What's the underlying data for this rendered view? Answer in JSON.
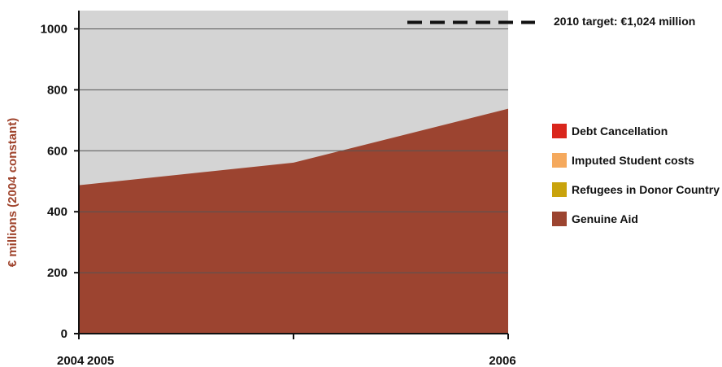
{
  "chart_data": {
    "type": "area",
    "title": "",
    "xlabel": "",
    "ylabel": "€ millions (2004 constant)",
    "ylim": [
      0,
      1060
    ],
    "yticks": [
      0,
      200,
      400,
      600,
      800,
      1000
    ],
    "x": [
      2004,
      2005,
      2006
    ],
    "xtick_labels": [
      "2004",
      "2005",
      "2006"
    ],
    "grid": true,
    "background_color": "#d4d4d4",
    "series": [
      {
        "name": "Genuine Aid",
        "values": [
          487,
          561,
          738
        ],
        "color": "#9c4430"
      }
    ],
    "target": {
      "value": 1024,
      "label": "2010 target: €1,024 million",
      "style": "dashed"
    },
    "legend": {
      "placement": "right",
      "entries": [
        {
          "label": "Debt Cancellation",
          "color": "#d9261c"
        },
        {
          "label": "Imputed Student costs",
          "color": "#f5a95d"
        },
        {
          "label": "Refugees in Donor Country",
          "color": "#c9a30c"
        },
        {
          "label": "Genuine Aid",
          "color": "#9c4430"
        }
      ]
    }
  }
}
